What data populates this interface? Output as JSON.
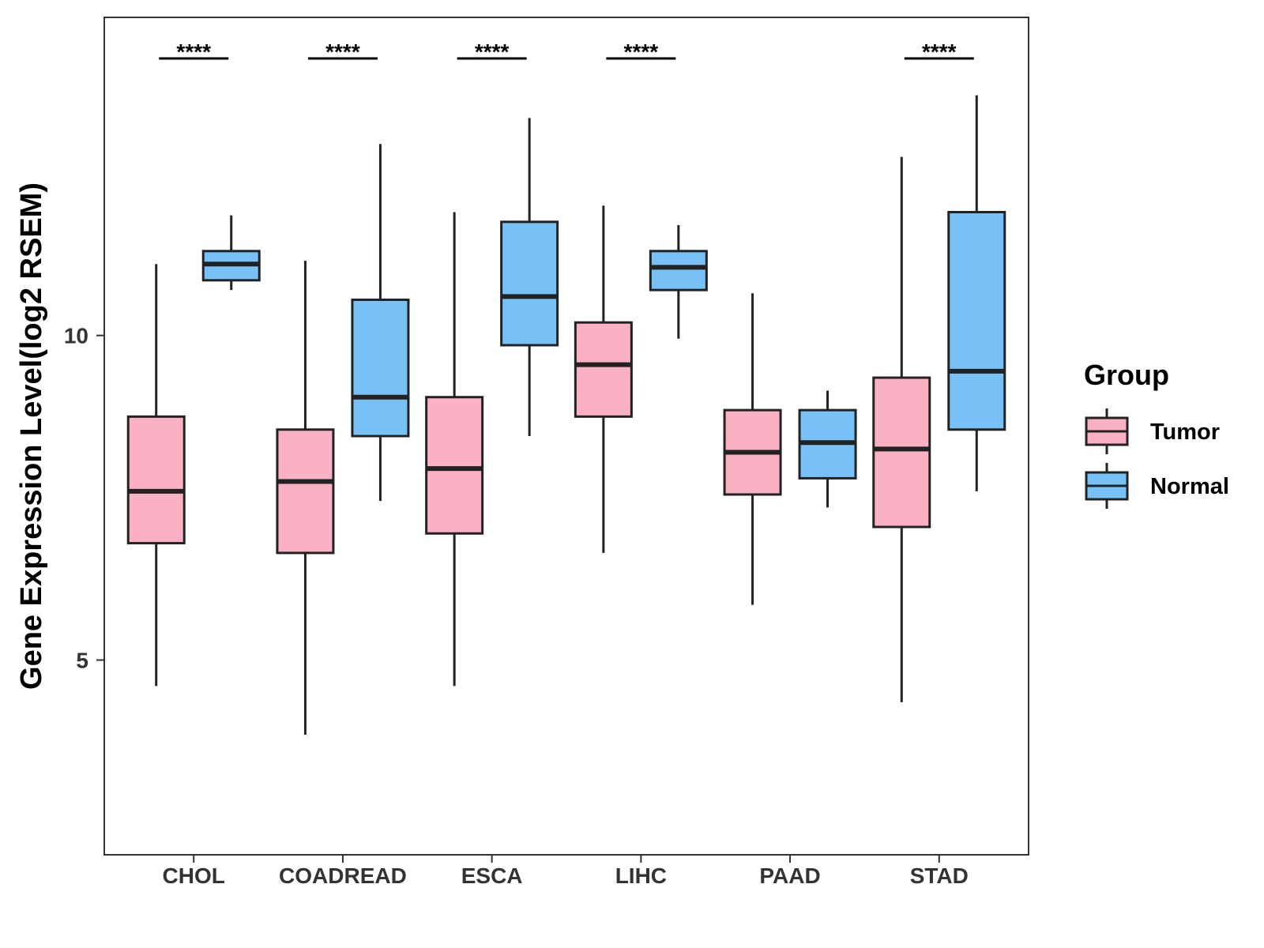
{
  "chart_data": {
    "type": "boxplot",
    "title": "",
    "xlabel": "",
    "ylabel": "Gene Expression Level(log2 RSEM)",
    "ylim": [
      2.0,
      14.9
    ],
    "yticks": [
      5,
      10
    ],
    "grid": false,
    "categories": [
      "CHOL",
      "COADREAD",
      "ESCA",
      "LIHC",
      "PAAD",
      "STAD"
    ],
    "legend": {
      "title": "Group",
      "position": "right"
    },
    "series": [
      {
        "name": "Tumor",
        "color": "#FBB1C4",
        "boxes": [
          {
            "min": 4.6,
            "q1": 6.8,
            "median": 7.6,
            "q3": 8.75,
            "max": 11.1
          },
          {
            "min": 3.85,
            "q1": 6.65,
            "median": 7.75,
            "q3": 8.55,
            "max": 11.15
          },
          {
            "min": 4.6,
            "q1": 6.95,
            "median": 7.95,
            "q3": 9.05,
            "max": 11.9
          },
          {
            "min": 6.65,
            "q1": 8.75,
            "median": 9.55,
            "q3": 10.2,
            "max": 12.0
          },
          {
            "min": 5.85,
            "q1": 7.55,
            "median": 8.2,
            "q3": 8.85,
            "max": 10.65
          },
          {
            "min": 4.35,
            "q1": 7.05,
            "median": 8.25,
            "q3": 9.35,
            "max": 12.75
          }
        ]
      },
      {
        "name": "Normal",
        "color": "#77C1F7",
        "boxes": [
          {
            "min": 10.7,
            "q1": 10.85,
            "median": 11.1,
            "q3": 11.3,
            "max": 11.85
          },
          {
            "min": 7.45,
            "q1": 8.45,
            "median": 9.05,
            "q3": 10.55,
            "max": 12.95
          },
          {
            "min": 8.45,
            "q1": 9.85,
            "median": 10.6,
            "q3": 11.75,
            "max": 13.35
          },
          {
            "min": 9.95,
            "q1": 10.7,
            "median": 11.05,
            "q3": 11.3,
            "max": 11.7
          },
          {
            "min": 7.35,
            "q1": 7.8,
            "median": 8.35,
            "q3": 8.85,
            "max": 9.15
          },
          {
            "min": 7.6,
            "q1": 8.55,
            "median": 9.45,
            "q3": 11.9,
            "max": 13.7
          }
        ]
      }
    ],
    "annotations": [
      {
        "category": "CHOL",
        "text": "****"
      },
      {
        "category": "COADREAD",
        "text": "****"
      },
      {
        "category": "ESCA",
        "text": "****"
      },
      {
        "category": "LIHC",
        "text": "****"
      },
      {
        "category": "STAD",
        "text": "****"
      }
    ]
  }
}
